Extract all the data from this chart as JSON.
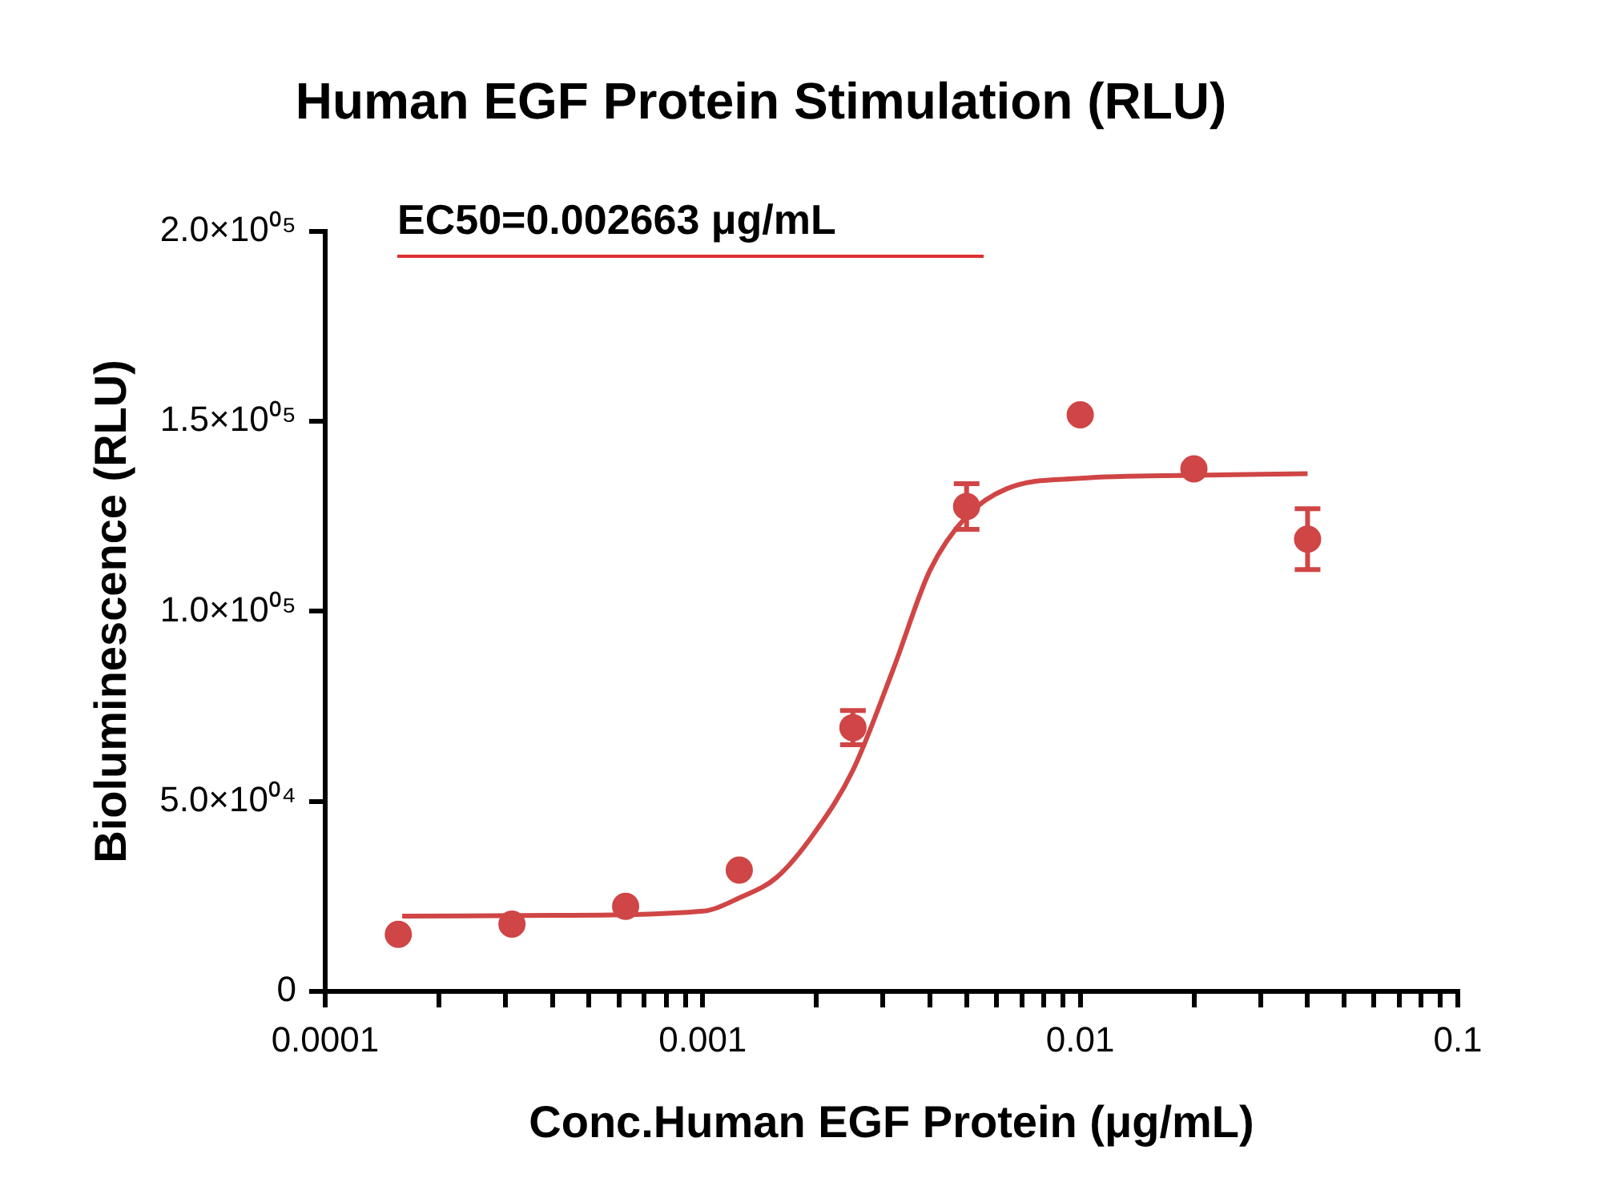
{
  "chart_data": {
    "type": "scatter",
    "title": "Human EGF Protein Stimulation (RLU)",
    "xlabel": "Conc.Human EGF Protein (μg/mL)",
    "ylabel": "Bioluminescence (RLU)",
    "annotations": [
      "EC50=0.002663 μg/mL"
    ],
    "log": "x",
    "grid": false,
    "legend": false,
    "marker": "circle",
    "xlim": [
      0.0001,
      0.1
    ],
    "xticks": [
      0.0001,
      {
        "value": 0.0002,
        "label": null
      },
      {
        "value": 0.0003,
        "label": null
      },
      {
        "value": 0.0004,
        "label": null
      },
      {
        "value": 0.0005,
        "label": null
      },
      {
        "value": 0.0006,
        "label": null
      },
      {
        "value": 0.0007,
        "label": null
      },
      {
        "value": 0.0008,
        "label": null
      },
      {
        "value": 0.0009,
        "label": null
      },
      0.001,
      {
        "value": 0.002,
        "label": null
      },
      {
        "value": 0.003,
        "label": null
      },
      {
        "value": 0.004,
        "label": null
      },
      {
        "value": 0.005,
        "label": null
      },
      {
        "value": 0.006,
        "label": null
      },
      {
        "value": 0.007,
        "label": null
      },
      {
        "value": 0.008,
        "label": null
      },
      {
        "value": 0.009,
        "label": null
      },
      0.01,
      {
        "value": 0.02,
        "label": null
      },
      {
        "value": 0.03,
        "label": null
      },
      {
        "value": 0.04,
        "label": null
      },
      {
        "value": 0.05,
        "label": null
      },
      {
        "value": 0.06,
        "label": null
      },
      {
        "value": 0.07,
        "label": null
      },
      {
        "value": 0.08,
        "label": null
      },
      {
        "value": 0.09,
        "label": null
      },
      0.1
    ],
    "ylim": [
      0,
      200000
    ],
    "yticks": [
      0,
      {
        "value": 50000,
        "label": "5.0×10⁰⁴"
      },
      {
        "value": 100000,
        "label": "1.0×10⁰⁵"
      },
      {
        "value": 150000,
        "label": "1.5×10⁰⁵"
      },
      {
        "value": 200000,
        "label": "2.0×10⁰⁵"
      }
    ],
    "series": [
      {
        "type": "scatter",
        "color": "#d04545",
        "x": [
          0.00015625,
          0.0003125,
          0.000625,
          0.00125,
          0.0025,
          0.005,
          0.01,
          0.02,
          0.04
        ],
        "values": [
          15000,
          17700,
          22400,
          31900,
          69400,
          127600,
          151700,
          137500,
          119000
        ],
        "errors": [
          null,
          null,
          null,
          null,
          4500,
          6000,
          null,
          null,
          8000
        ]
      },
      {
        "type": "line",
        "color": "#d04545",
        "marker": "none",
        "x": [
          0.00016,
          0.0004,
          0.001,
          0.00125,
          0.00157,
          0.00198,
          0.0025,
          0.0032,
          0.004,
          0.005,
          0.0064,
          0.01,
          0.02,
          0.04
        ],
        "values": [
          19800,
          20000,
          21100,
          24600,
          30000,
          41800,
          58200,
          84900,
          110800,
          125000,
          132300,
          135000,
          135800,
          136200
        ]
      }
    ]
  }
}
